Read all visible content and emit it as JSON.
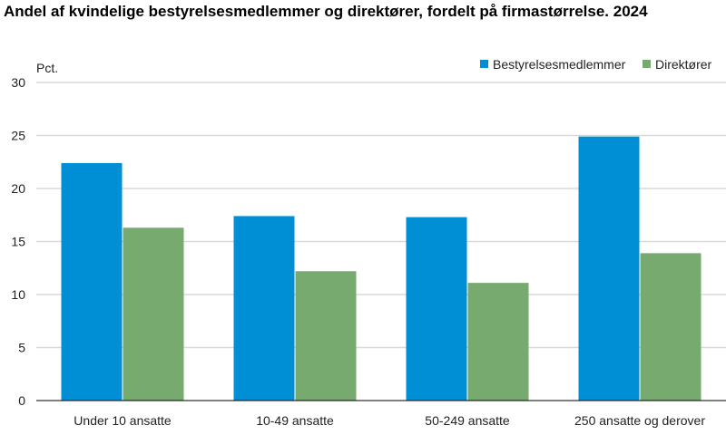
{
  "chart_data": {
    "type": "bar",
    "title": "Andel af kvindelige bestyrelsesmedlemmer og direktører, fordelt på firmastørrelse. 2024",
    "ylabel": "Pct.",
    "xlabel": "",
    "ylim": [
      0,
      30
    ],
    "yticks": [
      0,
      5,
      10,
      15,
      20,
      25,
      30
    ],
    "grid": true,
    "legend_placement": "top-right",
    "categories": [
      "Under 10 ansatte",
      "10-49 ansatte",
      "50-249 ansatte",
      "250 ansatte og derover"
    ],
    "series": [
      {
        "name": "Bestyrelsesmedlemmer",
        "color": "#008fd5",
        "values": [
          22.4,
          17.4,
          17.3,
          24.9
        ]
      },
      {
        "name": "Direktører",
        "color": "#77aa6e",
        "values": [
          16.3,
          12.2,
          11.1,
          13.9
        ]
      }
    ]
  }
}
